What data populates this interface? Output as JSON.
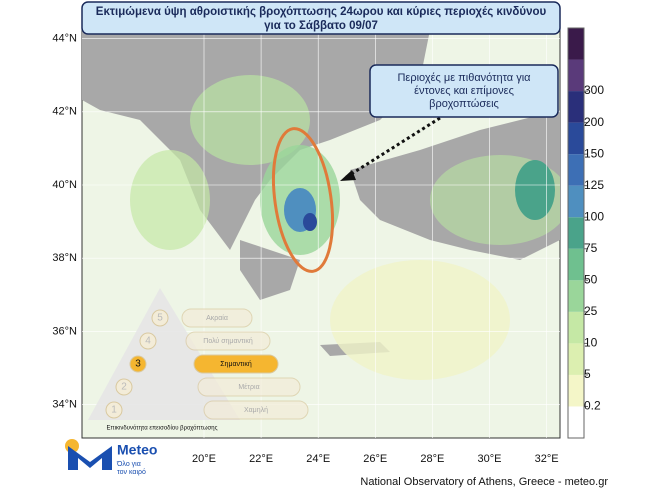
{
  "title": {
    "lines": [
      "Εκτιμώμενα ύψη αθροιστικής βροχόπτωσης 24ωρου και κύριες περιοχές κινδύνου",
      "για το Σάββατο 09/07"
    ]
  },
  "callout": {
    "lines": [
      "Περιοχές με πιθανότητα για",
      "έντονες και επίμονες",
      "βροχοπτώσεις"
    ]
  },
  "latitudes": [
    {
      "value": 44,
      "label": "44°N"
    },
    {
      "value": 42,
      "label": "42°N"
    },
    {
      "value": 40,
      "label": "40°N"
    },
    {
      "value": 38,
      "label": "38°N"
    },
    {
      "value": 36,
      "label": "36°N"
    },
    {
      "value": 34,
      "label": "34°N"
    }
  ],
  "longitudes": [
    {
      "value": 20,
      "label": "20°E"
    },
    {
      "value": 22,
      "label": "22°E"
    },
    {
      "value": 24,
      "label": "24°E"
    },
    {
      "value": 26,
      "label": "26°E"
    },
    {
      "value": 28,
      "label": "28°E"
    },
    {
      "value": 30,
      "label": "30°E"
    },
    {
      "value": 32,
      "label": "32°E"
    }
  ],
  "colorbar": {
    "ticks": [
      0.2,
      5,
      10,
      25,
      50,
      75,
      100,
      125,
      150,
      200,
      300
    ]
  },
  "risk_scale": {
    "levels": [
      {
        "number": "5",
        "label": "Ακραία"
      },
      {
        "number": "4",
        "label": "Πολύ σημαντική"
      },
      {
        "number": "3",
        "label": "Σημαντική"
      },
      {
        "number": "2",
        "label": "Μέτρια"
      },
      {
        "number": "1",
        "label": "Χαμηλή"
      }
    ],
    "caption": "Επικινδυνότητα επεισοδίου βροχόπτωσης"
  },
  "logo": {
    "name": "Meteo",
    "tagline": [
      "Όλο για",
      "τον καιρό"
    ]
  },
  "credit": "National Observatory of Athens, Greece - meteo.gr"
}
